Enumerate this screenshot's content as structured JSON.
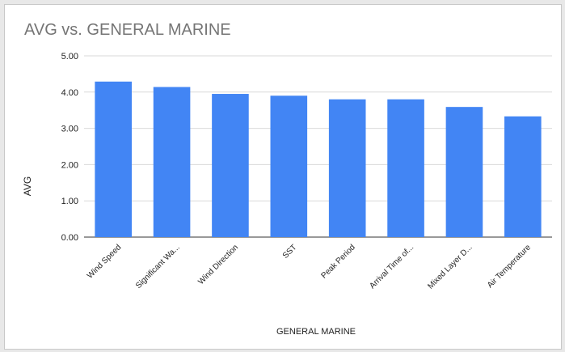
{
  "chart_data": {
    "type": "bar",
    "title": "AVG vs. GENERAL MARINE",
    "xlabel": "GENERAL MARINE",
    "ylabel": "AVG",
    "ylim": [
      0,
      5
    ],
    "yticks": [
      "0.00",
      "1.00",
      "2.00",
      "3.00",
      "4.00",
      "5.00"
    ],
    "grid": true,
    "legend": "none",
    "bar_color": "#4285f4",
    "categories": [
      "Wind Speed",
      "Significant Wa...",
      "Wind Direction",
      "SST",
      "Peak Period",
      "Arrival Time of...",
      "Mixed Layer D...",
      "Air Temperature"
    ],
    "values": [
      4.29,
      4.14,
      3.95,
      3.9,
      3.8,
      3.8,
      3.59,
      3.33
    ]
  }
}
